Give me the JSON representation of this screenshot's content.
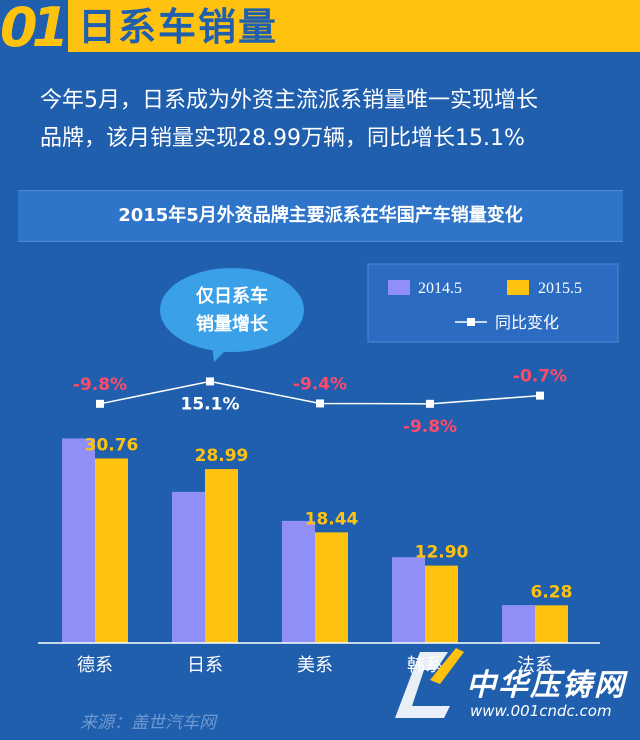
{
  "header": {
    "number": "01",
    "title": "日系车销量"
  },
  "intro": {
    "line1": "今年5月，日系成为外资主流派系销量唯一实现增长",
    "line2": "品牌，该月销量实现28.99万辆，同比增长15.1%"
  },
  "bubble": {
    "line1": "仅日系车",
    "line2": "销量增长"
  },
  "source": "来源：盖世汽车网",
  "logo": {
    "text": "中华压铸网",
    "url": "www.001cndc.com"
  },
  "colors": {
    "series2014": "#8f8ff7",
    "series2015": "#ffc20e",
    "growth_negative": "#ff4a6a",
    "growth_positive": "#ffffff",
    "line": "#ffffff"
  },
  "chart_data": {
    "type": "bar",
    "title": "2015年5月外资品牌主要派系在华国产车销量变化",
    "categories": [
      "德系",
      "日系",
      "美系",
      "韩系",
      "法系"
    ],
    "series": [
      {
        "name": "2014.5",
        "values": [
          34.1,
          25.19,
          20.35,
          14.3,
          6.32
        ]
      },
      {
        "name": "2015.5",
        "values": [
          30.76,
          28.99,
          18.44,
          12.9,
          6.28
        ],
        "labels": [
          "30.76",
          "28.99",
          "18.44",
          "12.90",
          "6.28"
        ]
      }
    ],
    "growth": {
      "name": "同比变化",
      "values": [
        -9.8,
        15.1,
        -9.4,
        -9.8,
        -0.7
      ],
      "labels": [
        "-9.8%",
        "15.1%",
        "-9.4%",
        "-9.8%",
        "-0.7%"
      ]
    },
    "legend_position": "top-right",
    "grid": false
  }
}
